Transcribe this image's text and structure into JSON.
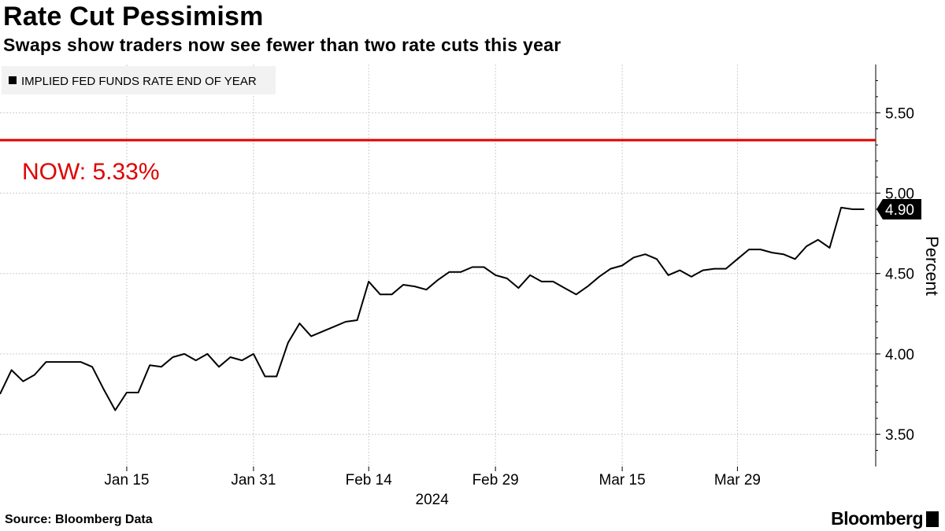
{
  "title": "Rate Cut Pessimism",
  "subtitle": "Swaps show traders now see fewer than two rate cuts this year",
  "source": "Source: Bloomberg Data",
  "brand": "Bloomberg",
  "colors": {
    "series": "#000000",
    "reference": "#e00000",
    "grid": "#cccccc"
  },
  "chart_data": {
    "type": "line",
    "series": [
      {
        "name": "IMPLIED FED FUNDS RATE END OF YEAR",
        "x": [
          0,
          1,
          2,
          3,
          4,
          5,
          6,
          7,
          8,
          9,
          10,
          11,
          12,
          13,
          14,
          15,
          16,
          17,
          18,
          19,
          20,
          21,
          22,
          23,
          24,
          25,
          26,
          27,
          28,
          29,
          30,
          31,
          32,
          33,
          34,
          35,
          36,
          37,
          38,
          39,
          40,
          41,
          42,
          43,
          44,
          45,
          46,
          47,
          48,
          49,
          50,
          51,
          52,
          53,
          54,
          55,
          56,
          57,
          58,
          59,
          60,
          61,
          62,
          63,
          64,
          65,
          66,
          67,
          68,
          69,
          70,
          71,
          72,
          73,
          74,
          75
        ],
        "values": [
          3.75,
          3.9,
          3.83,
          3.87,
          3.95,
          3.95,
          3.95,
          3.95,
          3.92,
          3.78,
          3.65,
          3.76,
          3.76,
          3.93,
          3.92,
          3.98,
          4.0,
          3.96,
          4.0,
          3.92,
          3.98,
          3.96,
          4.0,
          3.86,
          3.86,
          4.07,
          4.19,
          4.11,
          4.14,
          4.17,
          4.2,
          4.21,
          4.45,
          4.37,
          4.37,
          4.43,
          4.42,
          4.4,
          4.46,
          4.51,
          4.51,
          4.54,
          4.54,
          4.49,
          4.47,
          4.41,
          4.49,
          4.45,
          4.45,
          4.41,
          4.37,
          4.42,
          4.48,
          4.53,
          4.55,
          4.6,
          4.62,
          4.59,
          4.49,
          4.52,
          4.48,
          4.52,
          4.53,
          4.53,
          4.59,
          4.65,
          4.65,
          4.63,
          4.62,
          4.59,
          4.67,
          4.71,
          4.66,
          4.91,
          4.9,
          4.9
        ]
      }
    ],
    "reference_line": {
      "value": 5.33,
      "label": "NOW: 5.33%"
    },
    "last_value_label": "4.90",
    "y_ticks": [
      3.5,
      4.0,
      4.5,
      5.0,
      5.5
    ],
    "y_tick_labels": [
      "3.50",
      "4.00",
      "4.50",
      "5.00",
      "5.50"
    ],
    "ylim": [
      3.3,
      5.8
    ],
    "ylabel": "Percent",
    "x_tick_positions": [
      11,
      22,
      32,
      43,
      54,
      64
    ],
    "x_tick_labels": [
      "Jan 15",
      "Jan 31",
      "Feb 14",
      "Feb 29",
      "Mar 15",
      "Mar 29"
    ],
    "xlabel": "2024",
    "xlim": [
      0,
      76
    ],
    "legend_position": "top-left",
    "grid": true
  }
}
